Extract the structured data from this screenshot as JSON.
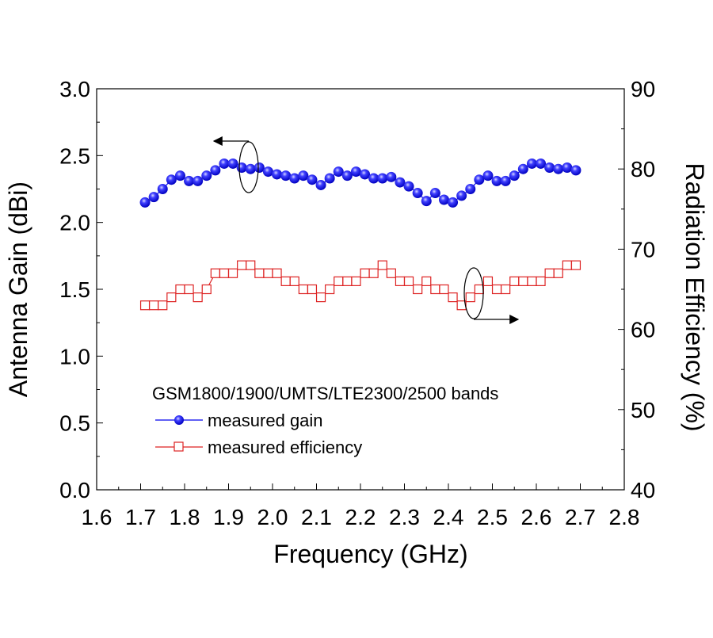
{
  "chart_data": {
    "type": "line",
    "title": "",
    "xlabel": "Frequency (GHz)",
    "ylabel": "Antenna Gain (dBi)",
    "y2label": "Radiation Efficiency (%)",
    "xlim": [
      1.6,
      2.8
    ],
    "ylim": [
      0.0,
      3.0
    ],
    "y2lim": [
      40,
      90
    ],
    "grid": false,
    "x_ticks": [
      "1.6",
      "1.7",
      "1.8",
      "1.9",
      "2.0",
      "2.1",
      "2.2",
      "2.3",
      "2.4",
      "2.5",
      "2.6",
      "2.7",
      "2.8"
    ],
    "y_ticks": [
      "0.0",
      "0.5",
      "1.0",
      "1.5",
      "2.0",
      "2.5",
      "3.0"
    ],
    "y2_ticks": [
      "40",
      "50",
      "60",
      "70",
      "80",
      "90"
    ],
    "legend_title": "GSM1800/1900/UMTS/LTE2300/2500 bands",
    "legend_placement": "bottom-center",
    "x_start": 1.71,
    "x_step": 0.02,
    "series": [
      {
        "name": "measured gain",
        "axis": "left",
        "color": "#0000ee",
        "marker": "sphere",
        "values": [
          2.15,
          2.19,
          2.25,
          2.32,
          2.35,
          2.31,
          2.31,
          2.35,
          2.39,
          2.44,
          2.44,
          2.41,
          2.4,
          2.41,
          2.38,
          2.36,
          2.35,
          2.33,
          2.35,
          2.32,
          2.28,
          2.33,
          2.38,
          2.35,
          2.38,
          2.36,
          2.33,
          2.33,
          2.34,
          2.3,
          2.27,
          2.22,
          2.16,
          2.22,
          2.17,
          2.15,
          2.2,
          2.25,
          2.32,
          2.35,
          2.31,
          2.31,
          2.35,
          2.4,
          2.44,
          2.44,
          2.41,
          2.4,
          2.41,
          2.39
        ]
      },
      {
        "name": "measured efficiency",
        "axis": "right",
        "color": "#dd2222",
        "marker": "open-square",
        "values": [
          63,
          63,
          63,
          64,
          65,
          65,
          64,
          65,
          67,
          67,
          67,
          68,
          68,
          67,
          67,
          67,
          66,
          66,
          65,
          65,
          64,
          65,
          66,
          66,
          66,
          67,
          67,
          68,
          67,
          66,
          66,
          65,
          66,
          65,
          65,
          64,
          63,
          64,
          65,
          66,
          65,
          65,
          66,
          66,
          66,
          66,
          67,
          67,
          68,
          68
        ]
      }
    ]
  }
}
